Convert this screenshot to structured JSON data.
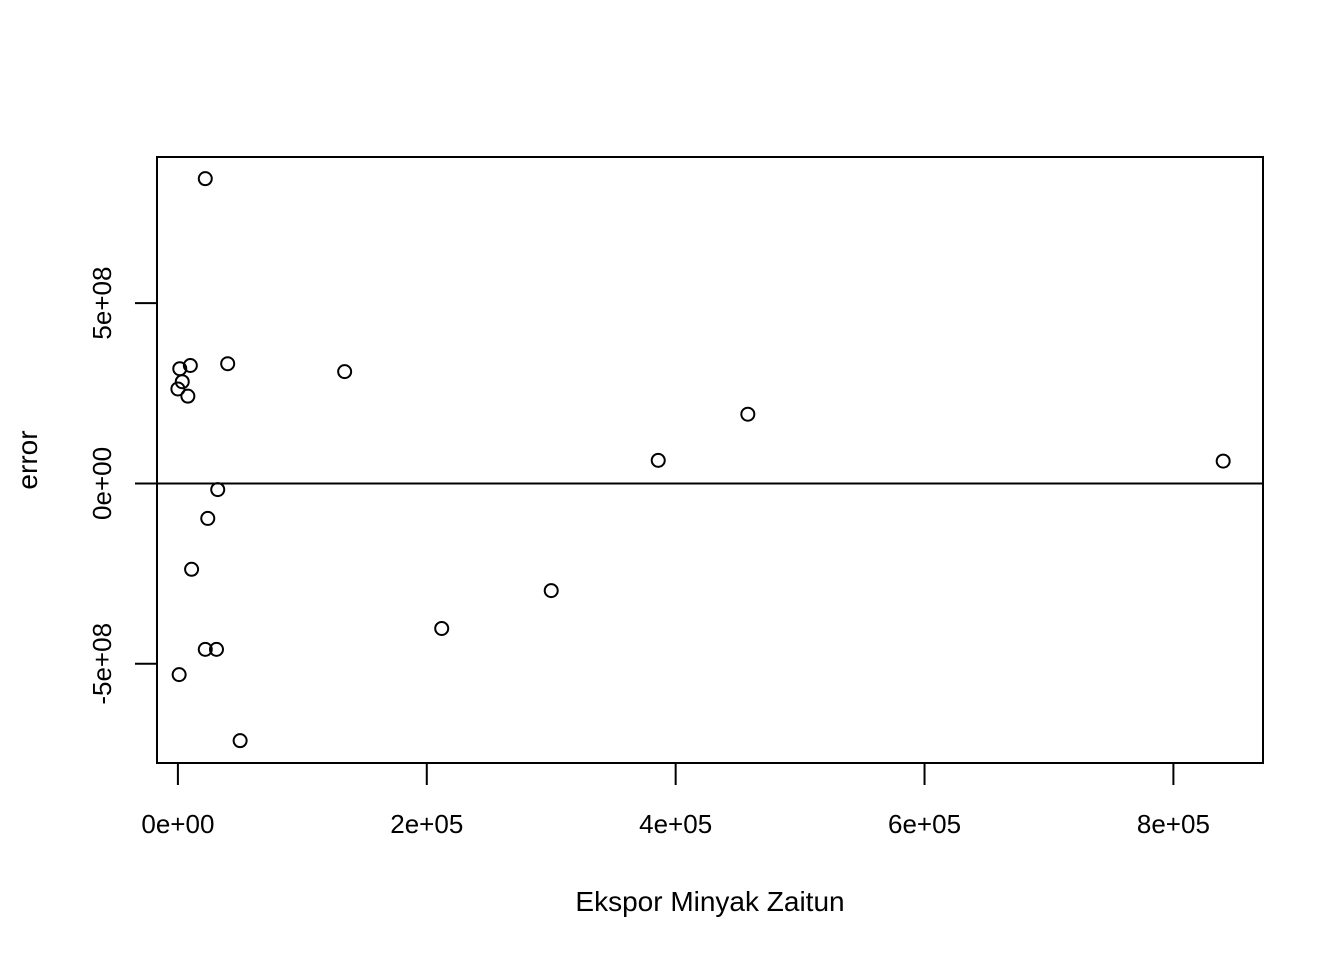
{
  "chart_data": {
    "type": "scatter",
    "title": "",
    "xlabel": "Ekspor Minyak Zaitun",
    "ylabel": "error",
    "xlim": [
      -16800,
      872000
    ],
    "ylim": [
      -775000000,
      905000000
    ],
    "x_ticks": [
      {
        "value": 0,
        "label": "0e+00"
      },
      {
        "value": 200000,
        "label": "2e+05"
      },
      {
        "value": 400000,
        "label": "4e+05"
      },
      {
        "value": 600000,
        "label": "6e+05"
      },
      {
        "value": 800000,
        "label": "8e+05"
      }
    ],
    "y_ticks": [
      {
        "value": -500000000,
        "label": "-5e+08"
      },
      {
        "value": 0,
        "label": "0e+00"
      },
      {
        "value": 500000000,
        "label": "5e+08"
      }
    ],
    "reference_line": {
      "orientation": "horizontal",
      "y": 0
    },
    "grid": false,
    "legend": "none",
    "points": [
      {
        "x": 22000,
        "y": 845000000
      },
      {
        "x": 1500,
        "y": 318000000
      },
      {
        "x": 10000,
        "y": 327000000
      },
      {
        "x": 40000,
        "y": 332000000
      },
      {
        "x": 3500,
        "y": 282000000
      },
      {
        "x": 0,
        "y": 262000000
      },
      {
        "x": 8000,
        "y": 242000000
      },
      {
        "x": 134000,
        "y": 310000000
      },
      {
        "x": 458000,
        "y": 192000000
      },
      {
        "x": 386000,
        "y": 64000000
      },
      {
        "x": 840000,
        "y": 62000000
      },
      {
        "x": 32000,
        "y": -17000000
      },
      {
        "x": 24000,
        "y": -97000000
      },
      {
        "x": 11000,
        "y": -238000000
      },
      {
        "x": 300000,
        "y": -297000000
      },
      {
        "x": 212000,
        "y": -402000000
      },
      {
        "x": 22000,
        "y": -460000000
      },
      {
        "x": 31000,
        "y": -460000000
      },
      {
        "x": 1000,
        "y": -530000000
      },
      {
        "x": 50000,
        "y": -713000000
      }
    ]
  }
}
